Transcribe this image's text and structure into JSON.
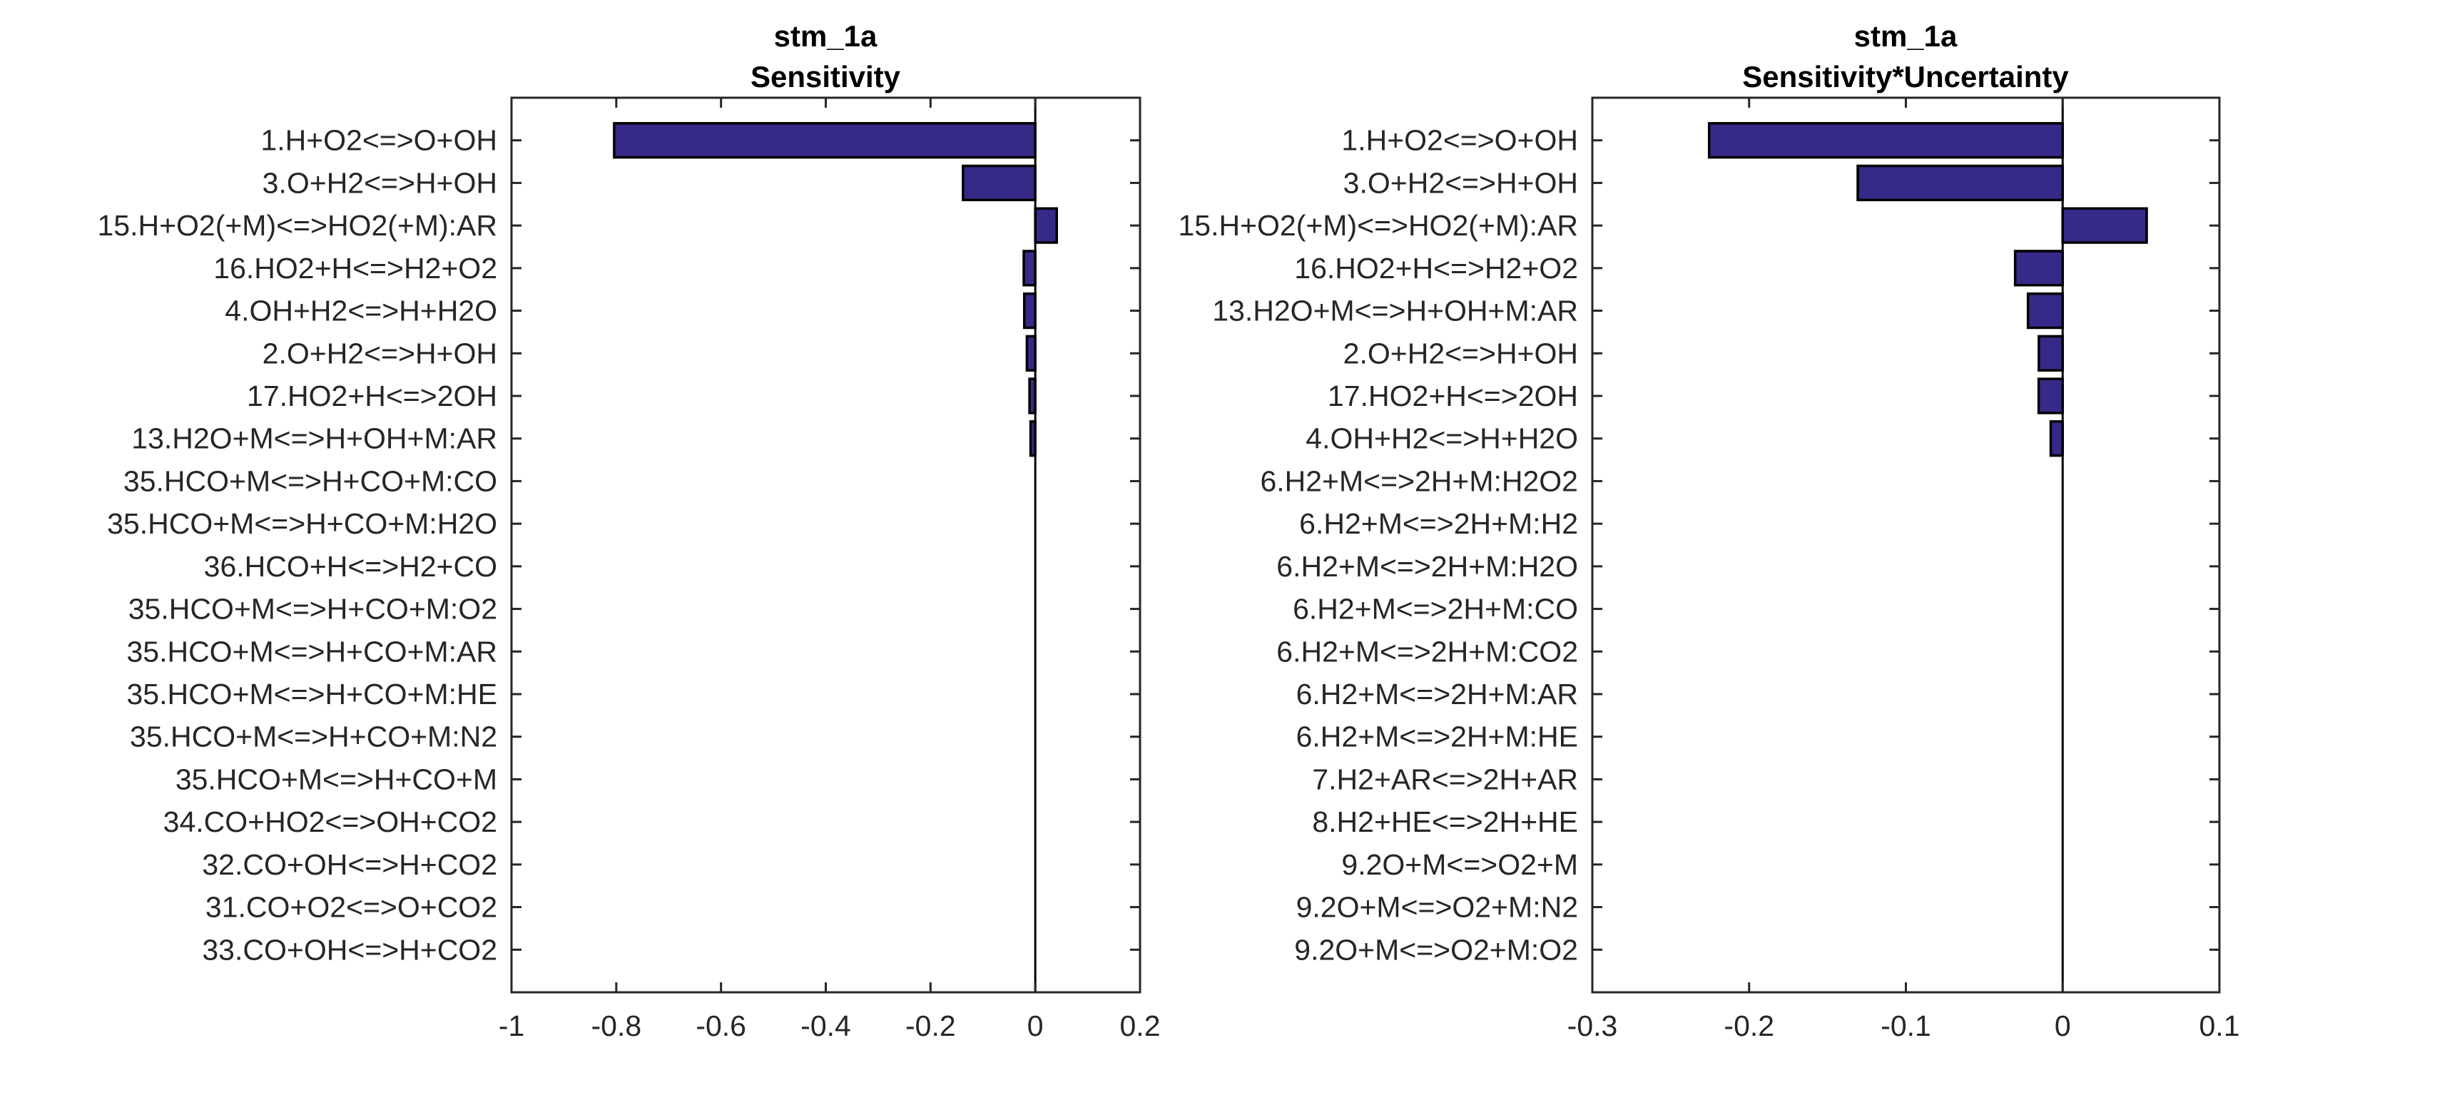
{
  "figure": {
    "colors": {
      "bar_fill": "#352a87",
      "bar_edge": "#000000",
      "axis": "#262626",
      "background": "#ffffff"
    }
  },
  "chart_data": [
    {
      "type": "bar",
      "orientation": "horizontal",
      "title": "stm_1a",
      "subtitle": "Sensitivity",
      "xlabel": "",
      "ylabel": "",
      "xlim": [
        -1,
        0.2
      ],
      "xticks": [
        -1,
        -0.8,
        -0.6,
        -0.4,
        -0.2,
        0,
        0.2
      ],
      "xtick_labels": [
        "-1",
        "-0.8",
        "-0.6",
        "-0.4",
        "-0.2",
        "0",
        "0.2"
      ],
      "grid": false,
      "categories": [
        "1.H+O2<=>O+OH",
        "3.O+H2<=>H+OH",
        "15.H+O2(+M)<=>HO2(+M):AR",
        "16.HO2+H<=>H2+O2",
        "4.OH+H2<=>H+H2O",
        "2.O+H2<=>H+OH",
        "17.HO2+H<=>2OH",
        "13.H2O+M<=>H+OH+M:AR",
        "35.HCO+M<=>H+CO+M:CO",
        "35.HCO+M<=>H+CO+M:H2O",
        "36.HCO+H<=>H2+CO",
        "35.HCO+M<=>H+CO+M:O2",
        "35.HCO+M<=>H+CO+M:AR",
        "35.HCO+M<=>H+CO+M:HE",
        "35.HCO+M<=>H+CO+M:N2",
        "35.HCO+M<=>H+CO+M",
        "34.CO+HO2<=>OH+CO2",
        "32.CO+OH<=>H+CO2",
        "31.CO+O2<=>O+CO2",
        "33.CO+OH<=>H+CO2"
      ],
      "values": [
        -0.804,
        -0.138,
        0.041,
        -0.022,
        -0.021,
        -0.016,
        -0.011,
        -0.009,
        0,
        0,
        0,
        0,
        0,
        0,
        0,
        0,
        0,
        0,
        0,
        0
      ]
    },
    {
      "type": "bar",
      "orientation": "horizontal",
      "title": "stm_1a",
      "subtitle": "Sensitivity*Uncertainty",
      "xlabel": "",
      "ylabel": "",
      "xlim": [
        -0.3,
        0.1
      ],
      "xticks": [
        -0.3,
        -0.2,
        -0.1,
        0,
        0.1
      ],
      "xtick_labels": [
        "-0.3",
        "-0.2",
        "-0.1",
        "0",
        "0.1"
      ],
      "grid": false,
      "categories": [
        "1.H+O2<=>O+OH",
        "3.O+H2<=>H+OH",
        "15.H+O2(+M)<=>HO2(+M):AR",
        "16.HO2+H<=>H2+O2",
        "13.H2O+M<=>H+OH+M:AR",
        "2.O+H2<=>H+OH",
        "17.HO2+H<=>2OH",
        "4.OH+H2<=>H+H2O",
        "6.H2+M<=>2H+M:H2O2",
        "6.H2+M<=>2H+M:H2",
        "6.H2+M<=>2H+M:H2O",
        "6.H2+M<=>2H+M:CO",
        "6.H2+M<=>2H+M:CO2",
        "6.H2+M<=>2H+M:AR",
        "6.H2+M<=>2H+M:HE",
        "7.H2+AR<=>2H+AR",
        "8.H2+HE<=>2H+HE",
        "9.2O+M<=>O2+M",
        "9.2O+M<=>O2+M:N2",
        "9.2O+M<=>O2+M:O2"
      ],
      "values": [
        -0.2255,
        -0.1307,
        0.0536,
        -0.0303,
        -0.0221,
        -0.0152,
        -0.0153,
        -0.0076,
        0,
        0,
        0,
        0,
        0,
        0,
        0,
        0,
        0,
        0,
        0,
        0
      ]
    }
  ]
}
